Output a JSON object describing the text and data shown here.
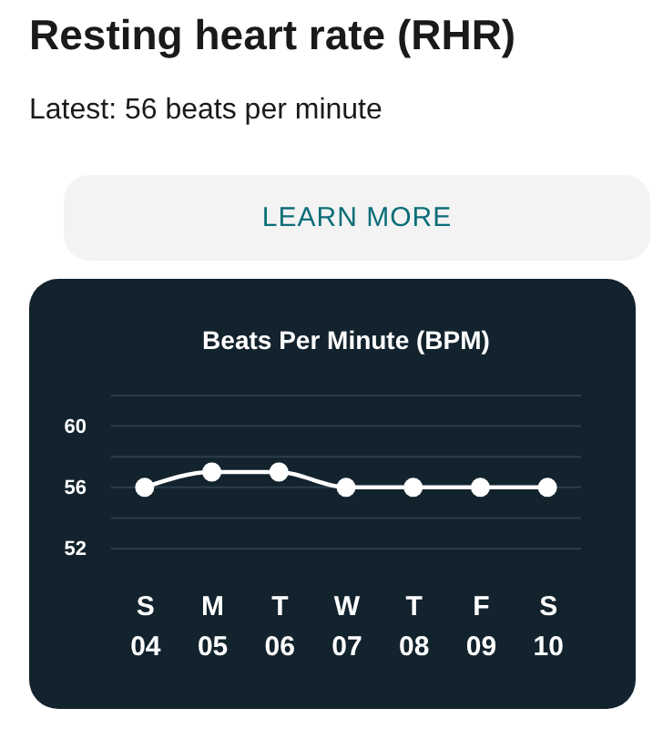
{
  "chart_data": {
    "type": "line",
    "title": "Resting heart rate (RHR)",
    "subtitle": "Latest: 56 beats per minute",
    "ylabel": "Beats Per Minute (BPM)",
    "annotations": [
      "LEARN MORE"
    ],
    "categories": [
      "S 04",
      "M 05",
      "T 06",
      "W 07",
      "T 08",
      "F 09",
      "S 10"
    ],
    "series": [
      {
        "color": "#ffffff",
        "values": [
          56,
          57,
          57,
          56,
          56,
          56,
          56
        ]
      }
    ],
    "ylim": [
      52,
      62
    ],
    "yticks": [
      52,
      {
        "value": 54,
        "label": null
      },
      56,
      {
        "value": 58,
        "label": null
      },
      60,
      {
        "value": 62,
        "label": null
      }
    ],
    "grid": "y",
    "marker": "circle",
    "line_style": "solid"
  }
}
